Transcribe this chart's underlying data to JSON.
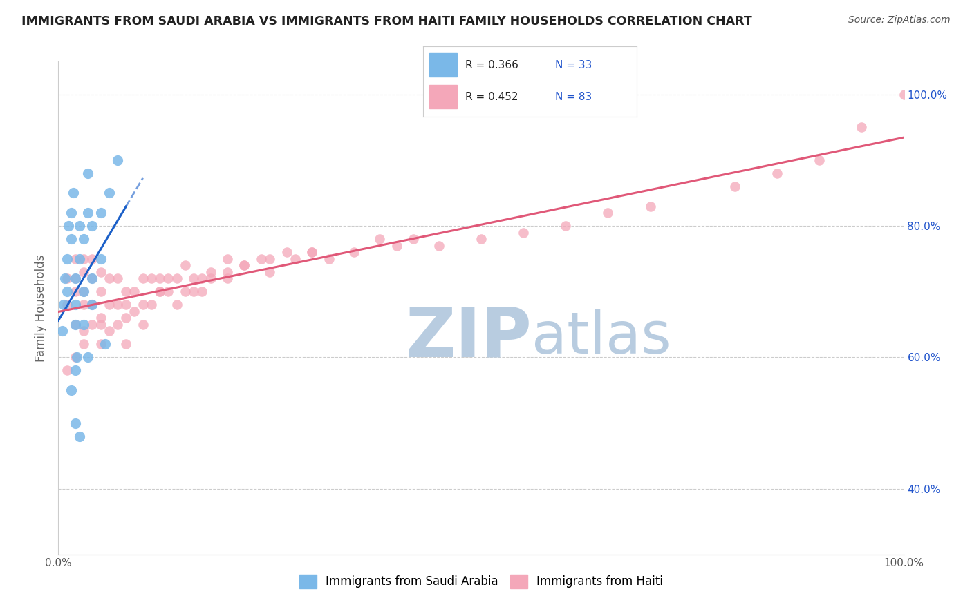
{
  "title": "IMMIGRANTS FROM SAUDI ARABIA VS IMMIGRANTS FROM HAITI FAMILY HOUSEHOLDS CORRELATION CHART",
  "source": "Source: ZipAtlas.com",
  "ylabel": "Family Households",
  "legend_labels": [
    "Immigrants from Saudi Arabia",
    "Immigrants from Haiti"
  ],
  "r_saudi": 0.366,
  "n_saudi": 33,
  "r_haiti": 0.452,
  "n_haiti": 83,
  "xlim": [
    0.0,
    100.0
  ],
  "ylim_data": [
    30.0,
    105.0
  ],
  "color_saudi": "#7ab8e8",
  "color_haiti": "#f4a7b9",
  "color_saudi_line": "#1a5fc8",
  "color_haiti_line": "#e05878",
  "color_title": "#222222",
  "color_source": "#555555",
  "color_r_label": "#222222",
  "color_r_value": "#2255cc",
  "color_grid": "#cccccc",
  "color_axis_label": "#2255cc",
  "watermark_zip": "#b8cce0",
  "watermark_atlas": "#b8cce0",
  "saudi_x": [
    0.5,
    0.6,
    0.8,
    1.0,
    1.0,
    1.2,
    1.5,
    1.5,
    1.8,
    2.0,
    2.0,
    2.0,
    2.2,
    2.5,
    2.5,
    3.0,
    3.0,
    3.5,
    3.5,
    4.0,
    4.0,
    5.0,
    5.0,
    6.0,
    7.0,
    1.5,
    2.0,
    3.0,
    4.0,
    2.0,
    3.5,
    5.5,
    2.5
  ],
  "saudi_y": [
    64,
    68,
    72,
    75,
    70,
    80,
    78,
    82,
    85,
    65,
    68,
    72,
    60,
    75,
    80,
    70,
    78,
    82,
    88,
    72,
    80,
    75,
    82,
    85,
    90,
    55,
    50,
    65,
    68,
    58,
    60,
    62,
    48
  ],
  "haiti_x": [
    1,
    1,
    2,
    2,
    2,
    2,
    3,
    3,
    3,
    3,
    3,
    4,
    4,
    4,
    4,
    5,
    5,
    5,
    5,
    6,
    6,
    6,
    7,
    7,
    7,
    8,
    8,
    8,
    9,
    9,
    10,
    10,
    10,
    11,
    11,
    12,
    12,
    13,
    13,
    14,
    15,
    15,
    16,
    17,
    18,
    20,
    20,
    22,
    24,
    25,
    27,
    28,
    30,
    32,
    35,
    38,
    40,
    42,
    45,
    50,
    55,
    60,
    65,
    70,
    80,
    85,
    90,
    95,
    100,
    14,
    16,
    18,
    20,
    25,
    30,
    22,
    17,
    12,
    8,
    5,
    3,
    2,
    1
  ],
  "haiti_y": [
    68,
    72,
    65,
    70,
    72,
    75,
    64,
    68,
    70,
    73,
    75,
    65,
    68,
    72,
    75,
    62,
    66,
    70,
    73,
    64,
    68,
    72,
    65,
    68,
    72,
    62,
    66,
    70,
    67,
    70,
    65,
    68,
    72,
    68,
    72,
    70,
    72,
    70,
    72,
    72,
    70,
    74,
    72,
    70,
    73,
    72,
    75,
    74,
    75,
    73,
    76,
    75,
    76,
    75,
    76,
    78,
    77,
    78,
    77,
    78,
    79,
    80,
    82,
    83,
    86,
    88,
    90,
    95,
    100,
    68,
    70,
    72,
    73,
    75,
    76,
    74,
    72,
    70,
    68,
    65,
    62,
    60,
    58
  ],
  "ytick_positions": [
    40,
    60,
    80,
    100
  ],
  "ytick_labels": [
    "40.0%",
    "60.0%",
    "80.0%",
    "100.0%"
  ],
  "xtick_positions": [
    0,
    100
  ],
  "xtick_labels": [
    "0.0%",
    "100.0%"
  ]
}
